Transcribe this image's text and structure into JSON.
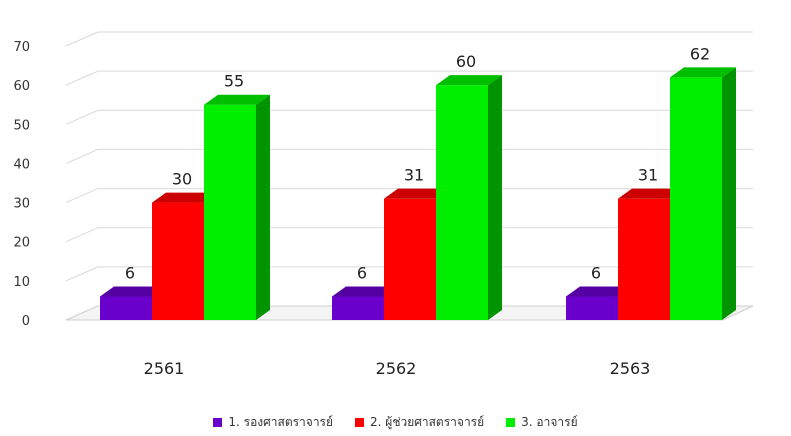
{
  "chart_data": {
    "type": "bar",
    "style": "3d-clustered-column",
    "title": "",
    "xlabel": "",
    "ylabel": "",
    "categories": [
      "2561",
      "2562",
      "2563"
    ],
    "series": [
      {
        "name": "1. รองศาสตราจารย์",
        "values": [
          6,
          6,
          6
        ],
        "color": "#6a00cc"
      },
      {
        "name": "2. ผู้ช่วยศาสตราจารย์",
        "values": [
          30,
          31,
          31
        ],
        "color": "#ff0000"
      },
      {
        "name": "3. อาจารย์",
        "values": [
          55,
          60,
          62
        ],
        "color": "#00ee00"
      }
    ],
    "ylim": [
      0,
      70
    ],
    "yticks": [
      "0",
      "10",
      "20",
      "30",
      "40",
      "50",
      "60",
      "70"
    ],
    "grid": true,
    "legend_position": "bottom",
    "data_labels": true
  }
}
